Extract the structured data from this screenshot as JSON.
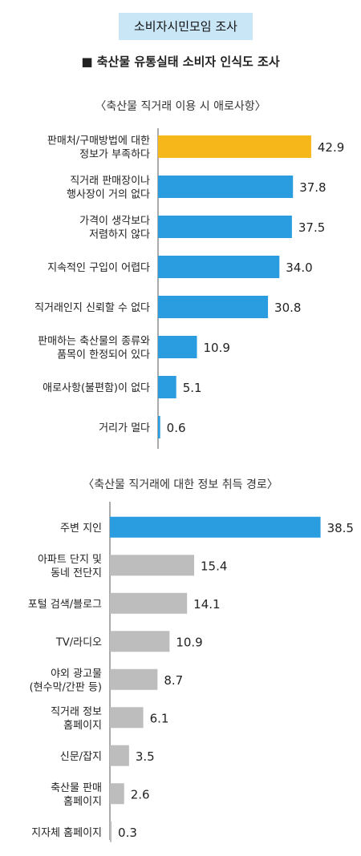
{
  "header": {
    "badge": "소비자시민모임 조사",
    "title": "■ 축산물 유통실태 소비자 인식도 조사"
  },
  "chart_data": [
    {
      "type": "bar",
      "orientation": "horizontal",
      "title": "〈축산물 직거래 이용 시 애로사항〉",
      "categories": [
        [
          "판매처/구매방법에 대한",
          "정보가 부족하다"
        ],
        [
          "직거래 판매장이나",
          "행사장이 거의 없다"
        ],
        [
          "가격이 생각보다",
          "저렴하지 않다"
        ],
        [
          "지속적인 구입이 어렵다"
        ],
        [
          "직거래인지 신뢰할 수 없다"
        ],
        [
          "판매하는 축산물의 종류와",
          "품목이 한정되어 있다"
        ],
        [
          "애로사항(불편함)이 없다"
        ],
        [
          "거리가 멀다"
        ]
      ],
      "value_labels": [
        "42.9",
        "37.8",
        "37.5",
        "34.0",
        "30.8",
        "10.9",
        "5.1",
        "0.6"
      ],
      "values": [
        42.9,
        37.8,
        37.5,
        34.0,
        30.8,
        10.9,
        5.1,
        0.6
      ],
      "bar_colors": [
        "#f5b719",
        "#2a9de0",
        "#2a9de0",
        "#2a9de0",
        "#2a9de0",
        "#2a9de0",
        "#2a9de0",
        "#2a9de0"
      ],
      "xlim": [
        0,
        45
      ]
    },
    {
      "type": "bar",
      "orientation": "horizontal",
      "title": "〈축산물 직거래에 대한 정보 취득 경로〉",
      "categories": [
        [
          "주변 지인"
        ],
        [
          "아파트 단지 및",
          "동네 전단지"
        ],
        [
          "포털 검색/블로그"
        ],
        [
          "TV/라디오"
        ],
        [
          "야외 광고물",
          "(현수막/간판 등)"
        ],
        [
          "직거래 정보",
          "홈페이지"
        ],
        [
          "신문/잡지"
        ],
        [
          "축산물 판매",
          "홈페이지"
        ],
        [
          "지자체 홈페이지"
        ]
      ],
      "value_labels": [
        "38.5",
        "15.4",
        "14.1",
        "10.9",
        "8.7",
        "6.1",
        "3.5",
        "2.6",
        "0.3"
      ],
      "values": [
        38.5,
        15.4,
        14.1,
        10.9,
        8.7,
        6.1,
        3.5,
        2.6,
        0.3
      ],
      "bar_colors": [
        "#2a9de0",
        "#bdbdbd",
        "#bdbdbd",
        "#bdbdbd",
        "#bdbdbd",
        "#bdbdbd",
        "#bdbdbd",
        "#bdbdbd",
        "#bdbdbd"
      ],
      "xlim": [
        0,
        40
      ]
    }
  ]
}
